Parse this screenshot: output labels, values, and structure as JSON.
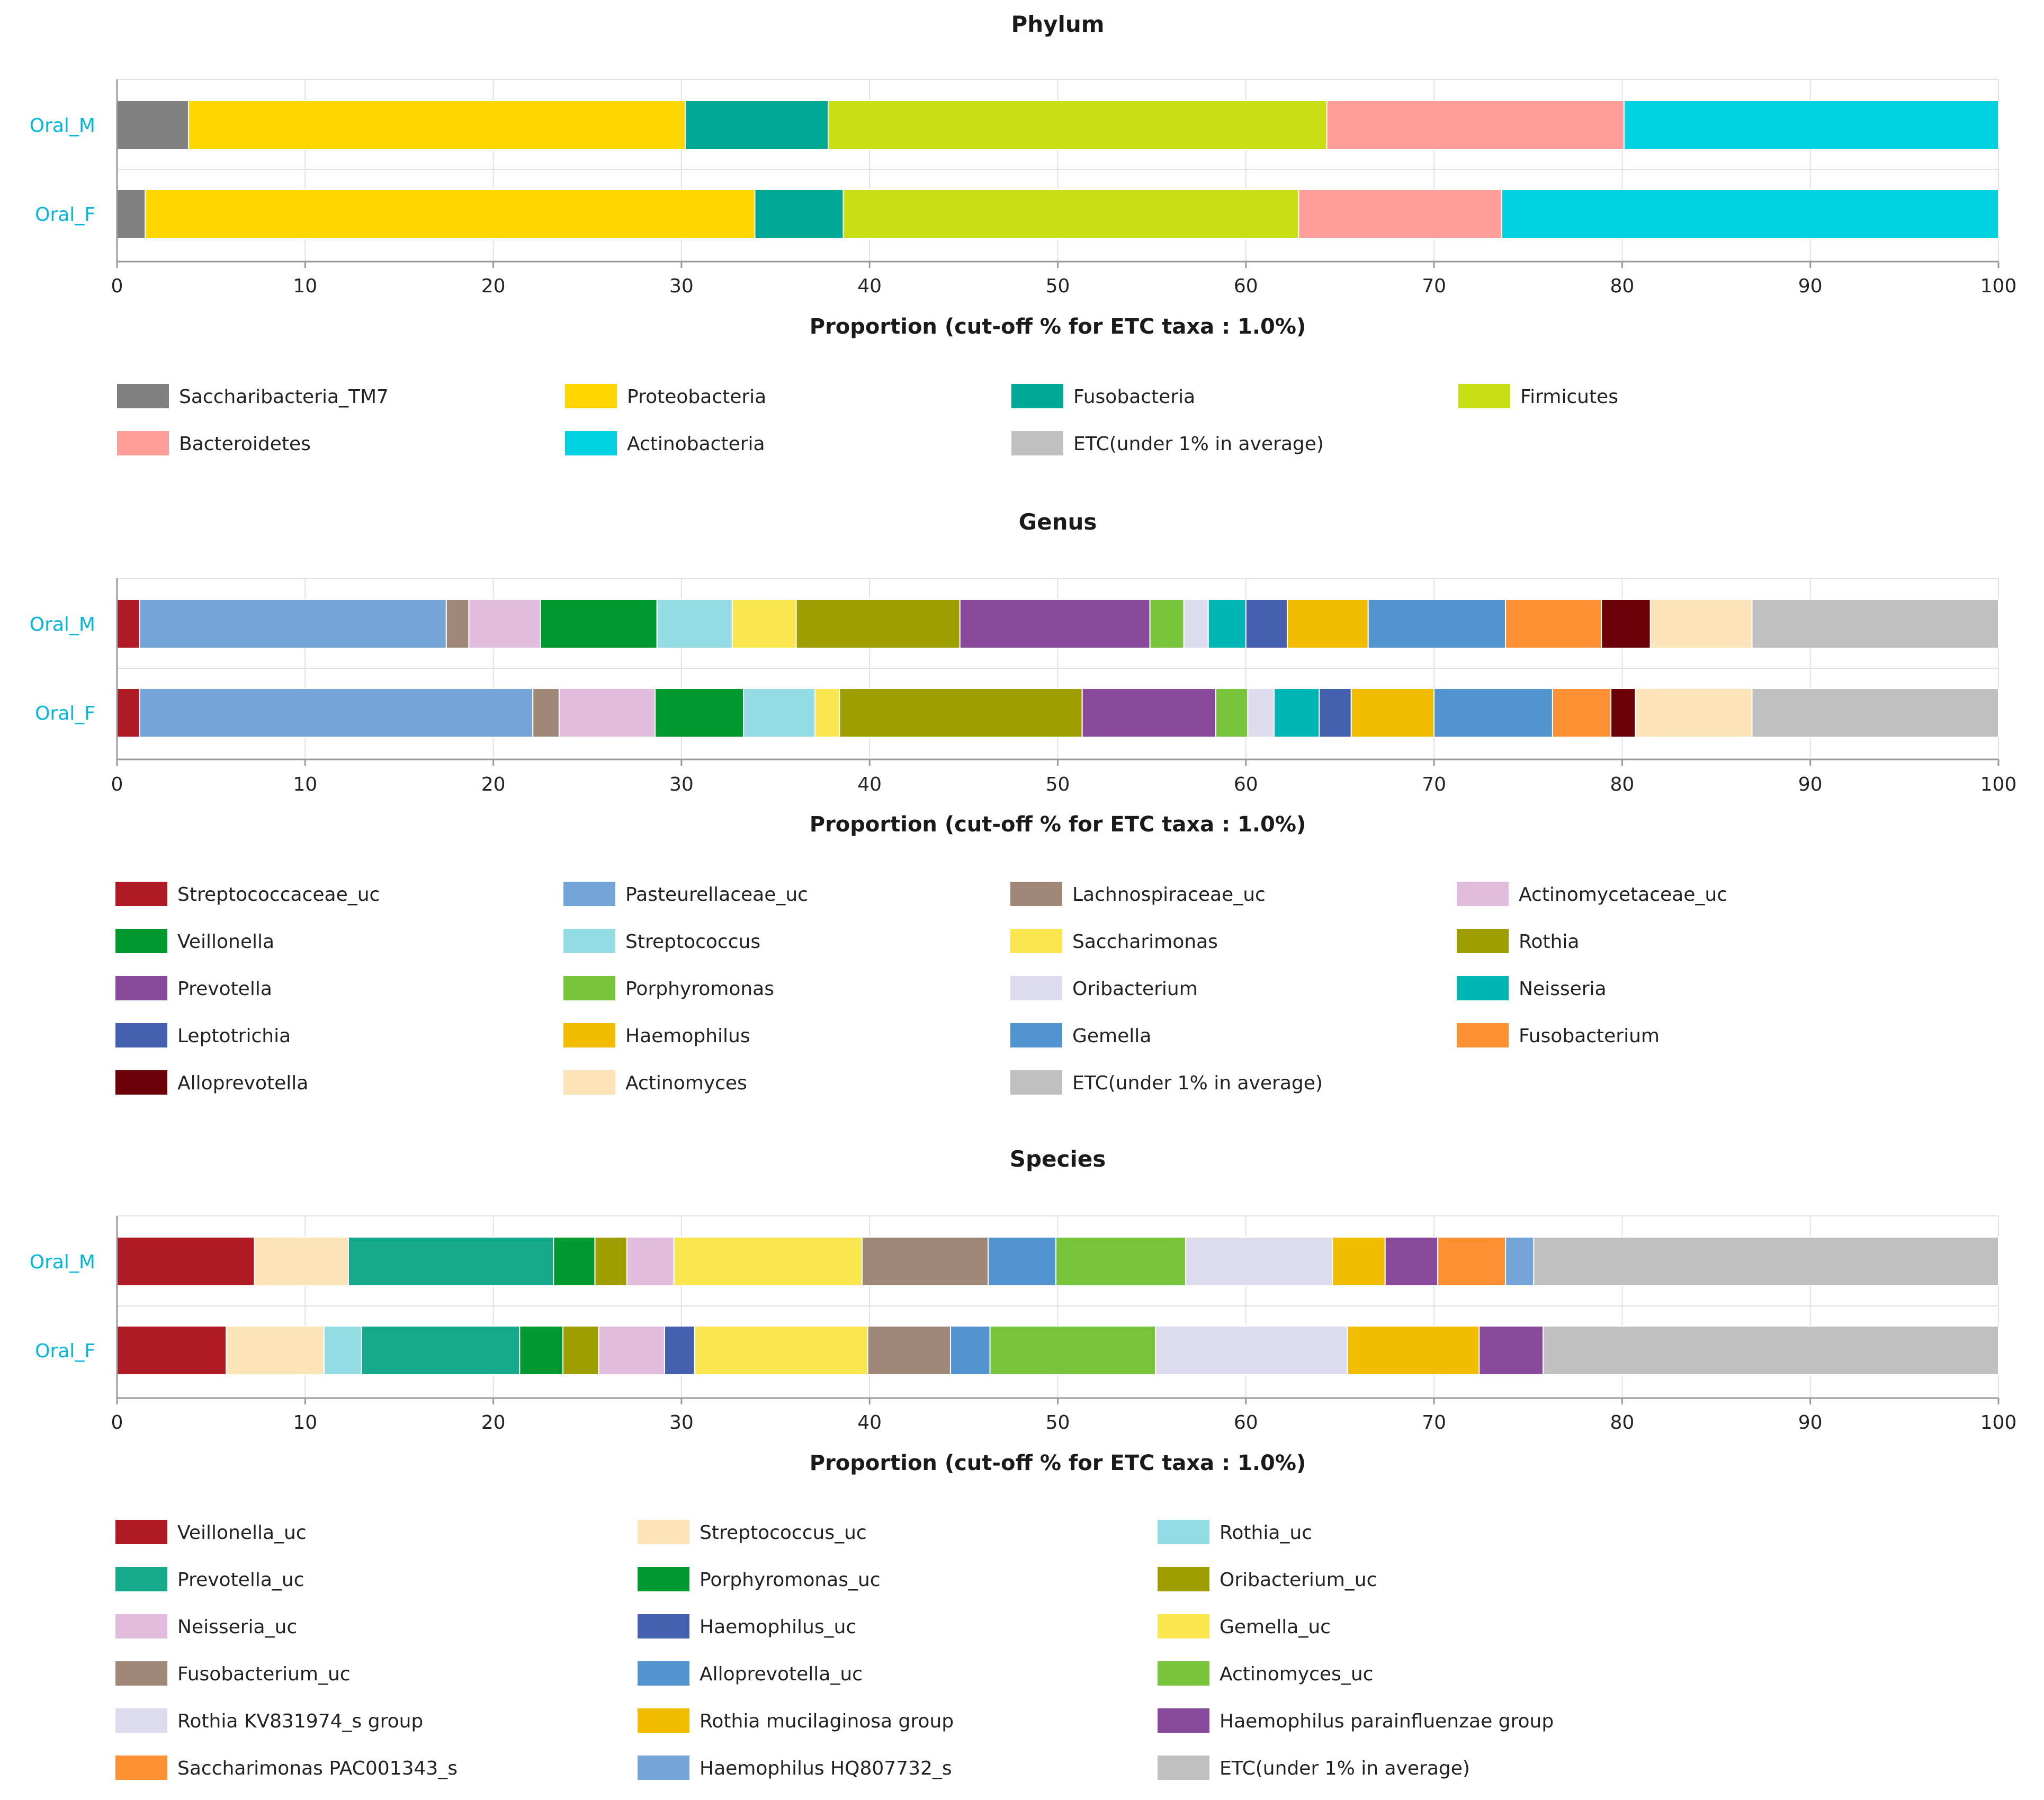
{
  "xlabel": "Proportion (cut-off % for ETC taxa : 1.0%)",
  "samples": [
    "Oral_M",
    "Oral_F"
  ],
  "chart_data": [
    {
      "type": "stacked-bar",
      "title": "Phylum",
      "xlabel": "Proportion (cut-off % for ETC taxa : 1.0%)",
      "xlim": [
        0,
        100
      ],
      "xticks": [
        0,
        10,
        20,
        30,
        40,
        50,
        60,
        70,
        80,
        90,
        100
      ],
      "categories": [
        "Oral_M",
        "Oral_F"
      ],
      "series": [
        {
          "name": "Saccharibacteria_TM7",
          "color": "#808080",
          "values": [
            3.8,
            1.5
          ]
        },
        {
          "name": "Proteobacteria",
          "color": "#ffd700",
          "values": [
            26.4,
            32.4
          ]
        },
        {
          "name": "Fusobacteria",
          "color": "#00a896",
          "values": [
            7.6,
            4.7
          ]
        },
        {
          "name": "Firmicutes",
          "color": "#c8df14",
          "values": [
            26.5,
            24.2
          ]
        },
        {
          "name": "Bacteroidetes",
          "color": "#ff9e99",
          "values": [
            15.8,
            10.8
          ]
        },
        {
          "name": "Actinobacteria",
          "color": "#00d2e1",
          "values": [
            19.9,
            26.4
          ]
        },
        {
          "name": "ETC(under 1% in average)",
          "color": "#c0c0c0",
          "values": [
            0,
            0
          ]
        }
      ]
    },
    {
      "type": "stacked-bar",
      "title": "Genus",
      "xlabel": "Proportion (cut-off % for ETC taxa : 1.0%)",
      "xlim": [
        0,
        100
      ],
      "xticks": [
        0,
        10,
        20,
        30,
        40,
        50,
        60,
        70,
        80,
        90,
        100
      ],
      "categories": [
        "Oral_M",
        "Oral_F"
      ],
      "series": [
        {
          "name": "Streptococcaceae_uc",
          "color": "#b01a24",
          "values": [
            1.2,
            1.2
          ]
        },
        {
          "name": "Pasteurellaceae_uc",
          "color": "#74a4d8",
          "values": [
            16.3,
            20.9
          ]
        },
        {
          "name": "Lachnospiraceae_uc",
          "color": "#a08878",
          "values": [
            1.2,
            1.4
          ]
        },
        {
          "name": "Actinomycetaceae_uc",
          "color": "#e2bcdc",
          "values": [
            3.8,
            5.1
          ]
        },
        {
          "name": "Veillonella",
          "color": "#009930",
          "values": [
            6.2,
            4.7
          ]
        },
        {
          "name": "Streptococcus",
          "color": "#94dce4",
          "values": [
            4.0,
            3.8
          ]
        },
        {
          "name": "Saccharimonas",
          "color": "#fae64e",
          "values": [
            3.4,
            1.3
          ]
        },
        {
          "name": "Rothia",
          "color": "#9e9e00",
          "values": [
            8.7,
            12.9
          ]
        },
        {
          "name": "Prevotella",
          "color": "#8a4a9c",
          "values": [
            10.1,
            7.1
          ]
        },
        {
          "name": "Porphyromonas",
          "color": "#78c43a",
          "values": [
            1.8,
            1.7
          ]
        },
        {
          "name": "Oribacterium",
          "color": "#dcdcee",
          "values": [
            1.3,
            1.4
          ]
        },
        {
          "name": "Neisseria",
          "color": "#00b6b4",
          "values": [
            2.0,
            2.4
          ]
        },
        {
          "name": "Leptotrichia",
          "color": "#4660b0",
          "values": [
            2.2,
            1.7
          ]
        },
        {
          "name": "Haemophilus",
          "color": "#f2bc00",
          "values": [
            4.3,
            4.4
          ]
        },
        {
          "name": "Gemella",
          "color": "#5294d0",
          "values": [
            7.3,
            6.3
          ]
        },
        {
          "name": "Fusobacterium",
          "color": "#fc9032",
          "values": [
            5.1,
            3.1
          ]
        },
        {
          "name": "Alloprevotella",
          "color": "#6c0008",
          "values": [
            2.6,
            1.3
          ]
        },
        {
          "name": "Actinomyces",
          "color": "#fde4b8",
          "values": [
            5.4,
            6.2
          ]
        },
        {
          "name": "ETC(under 1% in average)",
          "color": "#c0c0c0",
          "values": [
            13.1,
            13.1
          ]
        }
      ]
    },
    {
      "type": "stacked-bar",
      "title": "Species",
      "xlabel": "Proportion (cut-off % for ETC taxa : 1.0%)",
      "xlim": [
        0,
        100
      ],
      "xticks": [
        0,
        10,
        20,
        30,
        40,
        50,
        60,
        70,
        80,
        90,
        100
      ],
      "categories": [
        "Oral_M",
        "Oral_F"
      ],
      "series": [
        {
          "name": "Veillonella_uc",
          "color": "#b01a24",
          "values": [
            7.3,
            5.8
          ]
        },
        {
          "name": "Streptococcus_uc",
          "color": "#fde4b8",
          "values": [
            5.0,
            5.2
          ]
        },
        {
          "name": "Rothia_uc",
          "color": "#94dce4",
          "values": [
            0,
            2.0
          ]
        },
        {
          "name": "Prevotella_uc",
          "color": "#16a98c",
          "values": [
            10.9,
            8.4
          ]
        },
        {
          "name": "Porphyromonas_uc",
          "color": "#009930",
          "values": [
            2.2,
            2.3
          ]
        },
        {
          "name": "Oribacterium_uc",
          "color": "#9e9e00",
          "values": [
            1.7,
            1.9
          ]
        },
        {
          "name": "Neisseria_uc",
          "color": "#e2bcdc",
          "values": [
            2.5,
            3.5
          ]
        },
        {
          "name": "Haemophilus_uc",
          "color": "#4660b0",
          "values": [
            0,
            1.6
          ]
        },
        {
          "name": "Gemella_uc",
          "color": "#fae64e",
          "values": [
            10.0,
            9.2
          ]
        },
        {
          "name": "Fusobacterium_uc",
          "color": "#a08878",
          "values": [
            6.7,
            4.4
          ]
        },
        {
          "name": "Alloprevotella_uc",
          "color": "#5294d0",
          "values": [
            3.6,
            2.1
          ]
        },
        {
          "name": "Actinomyces_uc",
          "color": "#78c43a",
          "values": [
            6.9,
            8.8
          ]
        },
        {
          "name": "Rothia KV831974_s group",
          "color": "#dcdcee",
          "values": [
            7.8,
            10.2
          ]
        },
        {
          "name": "Rothia mucilaginosa group",
          "color": "#f2bc00",
          "values": [
            2.8,
            7.0
          ]
        },
        {
          "name": "Haemophilus parainfluenzae group",
          "color": "#8a4a9c",
          "values": [
            2.8,
            3.4
          ]
        },
        {
          "name": "Saccharimonas PAC001343_s",
          "color": "#fc9032",
          "values": [
            3.6,
            0
          ]
        },
        {
          "name": "Haemophilus HQ807732_s",
          "color": "#74a4d8",
          "values": [
            1.5,
            0
          ]
        },
        {
          "name": "ETC(under 1% in average)",
          "color": "#c0c0c0",
          "values": [
            24.7,
            24.2
          ]
        }
      ]
    }
  ]
}
